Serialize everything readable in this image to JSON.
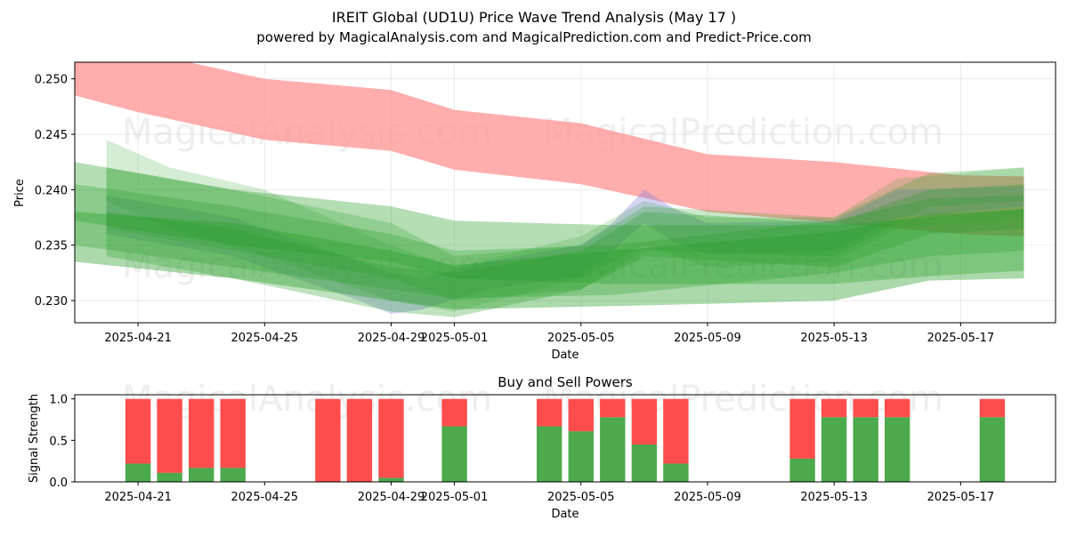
{
  "title_line1": "IREIT Global (UD1U) Price Wave Trend Analysis (May 17 )",
  "title_line2": "powered by MagicalAnalysis.com and MagicalPrediction.com and Predict-Price.com",
  "watermarks": [
    "MagicalAnalysis.com",
    "MagicalPrediction.com"
  ],
  "colors": {
    "buy": "#4caa4c",
    "sell": "#ff4d4d",
    "band_red": "#ff9999",
    "band_green": "#2ca02c",
    "band_blue": "#8080e0"
  },
  "chart_data": [
    {
      "type": "area",
      "title": "",
      "xlabel": "Date",
      "ylabel": "Price",
      "x_ticks": [
        "2025-04-21",
        "2025-04-25",
        "2025-04-29",
        "2025-05-01",
        "2025-05-05",
        "2025-05-09",
        "2025-05-13",
        "2025-05-17"
      ],
      "y_ticks": [
        "0.230",
        "0.235",
        "0.240",
        "0.245",
        "0.250"
      ],
      "xlim": [
        "2025-04-19",
        "2025-05-20"
      ],
      "ylim": [
        0.228,
        0.2515
      ],
      "grid": true,
      "red_band": {
        "x": [
          "2025-04-19",
          "2025-04-21",
          "2025-04-25",
          "2025-04-29",
          "2025-05-01",
          "2025-05-05",
          "2025-05-09",
          "2025-05-13",
          "2025-05-17",
          "2025-05-19"
        ],
        "upper": [
          0.2525,
          0.2525,
          0.25,
          0.249,
          0.2472,
          0.246,
          0.2432,
          0.2425,
          0.2413,
          0.2412
        ],
        "lower": [
          0.2485,
          0.247,
          0.2445,
          0.2435,
          0.2418,
          0.2405,
          0.238,
          0.237,
          0.236,
          0.2358
        ]
      },
      "green_bands": [
        {
          "x": [
            "2025-04-19",
            "2025-04-24",
            "2025-04-29",
            "2025-05-01",
            "2025-05-06",
            "2025-05-13",
            "2025-05-16",
            "2025-05-19"
          ],
          "upper": [
            0.2425,
            0.24,
            0.2385,
            0.2372,
            0.2368,
            0.2368,
            0.2375,
            0.2383
          ],
          "lower": [
            0.2372,
            0.235,
            0.2335,
            0.232,
            0.2315,
            0.2315,
            0.2322,
            0.2327
          ]
        },
        {
          "x": [
            "2025-04-19",
            "2025-04-24",
            "2025-04-29",
            "2025-05-01",
            "2025-05-06",
            "2025-05-13",
            "2025-05-16",
            "2025-05-19"
          ],
          "upper": [
            0.2405,
            0.2385,
            0.236,
            0.2345,
            0.235,
            0.2372,
            0.2392,
            0.2395
          ],
          "lower": [
            0.235,
            0.233,
            0.231,
            0.2302,
            0.2305,
            0.2325,
            0.234,
            0.2345
          ]
        },
        {
          "x": [
            "2025-04-19",
            "2025-04-24",
            "2025-04-29",
            "2025-05-01",
            "2025-05-06",
            "2025-05-13",
            "2025-05-16",
            "2025-05-19"
          ],
          "upper": [
            0.238,
            0.237,
            0.2345,
            0.2332,
            0.2345,
            0.2362,
            0.2378,
            0.2382
          ],
          "lower": [
            0.2335,
            0.232,
            0.23,
            0.2292,
            0.2295,
            0.23,
            0.2318,
            0.232
          ]
        },
        {
          "x": [
            "2025-04-20",
            "2025-04-22",
            "2025-04-25",
            "2025-04-29",
            "2025-05-01",
            "2025-05-05",
            "2025-05-07",
            "2025-05-09",
            "2025-05-13",
            "2025-05-15",
            "2025-05-19"
          ],
          "upper": [
            0.2445,
            0.242,
            0.24,
            0.235,
            0.233,
            0.2358,
            0.239,
            0.2375,
            0.2375,
            0.241,
            0.242
          ],
          "lower": [
            0.239,
            0.2365,
            0.234,
            0.23,
            0.229,
            0.232,
            0.235,
            0.233,
            0.2335,
            0.2365,
            0.2375
          ]
        },
        {
          "x": [
            "2025-04-20",
            "2025-04-24",
            "2025-04-29",
            "2025-05-01",
            "2025-05-05",
            "2025-05-07",
            "2025-05-13",
            "2025-05-16",
            "2025-05-19"
          ],
          "upper": [
            0.238,
            0.2365,
            0.233,
            0.2325,
            0.2345,
            0.238,
            0.237,
            0.24,
            0.2405
          ],
          "lower": [
            0.234,
            0.232,
            0.229,
            0.2285,
            0.231,
            0.234,
            0.233,
            0.236,
            0.2365
          ]
        },
        {
          "x": [
            "2025-04-20",
            "2025-04-24",
            "2025-04-29",
            "2025-05-01",
            "2025-05-05",
            "2025-05-07",
            "2025-05-13",
            "2025-05-16",
            "2025-05-19"
          ],
          "upper": [
            0.242,
            0.24,
            0.237,
            0.234,
            0.235,
            0.2385,
            0.2375,
            0.2415,
            0.242
          ],
          "lower": [
            0.2365,
            0.2345,
            0.232,
            0.23,
            0.231,
            0.2345,
            0.234,
            0.2385,
            0.239
          ]
        }
      ],
      "blue_band": {
        "x": [
          "2025-04-20",
          "2025-04-24",
          "2025-04-28",
          "2025-04-29",
          "2025-04-30",
          "2025-05-02",
          "2025-05-05",
          "2025-05-06",
          "2025-05-07",
          "2025-05-08",
          "2025-05-09",
          "2025-05-13",
          "2025-05-15",
          "2025-05-19"
        ],
        "upper": [
          0.2395,
          0.2375,
          0.2335,
          0.2325,
          0.232,
          0.2335,
          0.235,
          0.237,
          0.24,
          0.2382,
          0.237,
          0.2372,
          0.24,
          0.2403
        ],
        "lower": [
          0.236,
          0.234,
          0.23,
          0.2288,
          0.2292,
          0.231,
          0.2322,
          0.2345,
          0.237,
          0.2352,
          0.2342,
          0.2345,
          0.2375,
          0.2385
        ]
      }
    },
    {
      "type": "bar",
      "title": "Buy and Sell Powers",
      "xlabel": "Date",
      "ylabel": "Signal Strength",
      "x_ticks": [
        "2025-04-21",
        "2025-04-25",
        "2025-04-29",
        "2025-05-01",
        "2025-05-05",
        "2025-05-09",
        "2025-05-13",
        "2025-05-17"
      ],
      "y_ticks": [
        "0.0",
        "0.5",
        "1.0"
      ],
      "ylim": [
        0,
        1.05
      ],
      "dates": [
        "2025-04-21",
        "2025-04-22",
        "2025-04-23",
        "2025-04-24",
        "2025-04-27",
        "2025-04-28",
        "2025-04-29",
        "2025-05-01",
        "2025-05-04",
        "2025-05-05",
        "2025-05-06",
        "2025-05-07",
        "2025-05-08",
        "2025-05-12",
        "2025-05-13",
        "2025-05-14",
        "2025-05-15",
        "2025-05-18"
      ],
      "series": [
        {
          "name": "buy",
          "values": [
            0.22,
            0.11,
            0.17,
            0.17,
            0.0,
            0.0,
            0.05,
            0.67,
            0.67,
            0.61,
            0.78,
            0.45,
            0.22,
            0.28,
            0.78,
            0.78,
            0.78,
            0.78
          ]
        },
        {
          "name": "sell",
          "values": [
            0.78,
            0.89,
            0.83,
            0.83,
            1.0,
            1.0,
            0.95,
            0.33,
            0.33,
            0.39,
            0.22,
            0.55,
            0.78,
            0.72,
            0.22,
            0.22,
            0.22,
            0.22
          ]
        }
      ]
    }
  ]
}
